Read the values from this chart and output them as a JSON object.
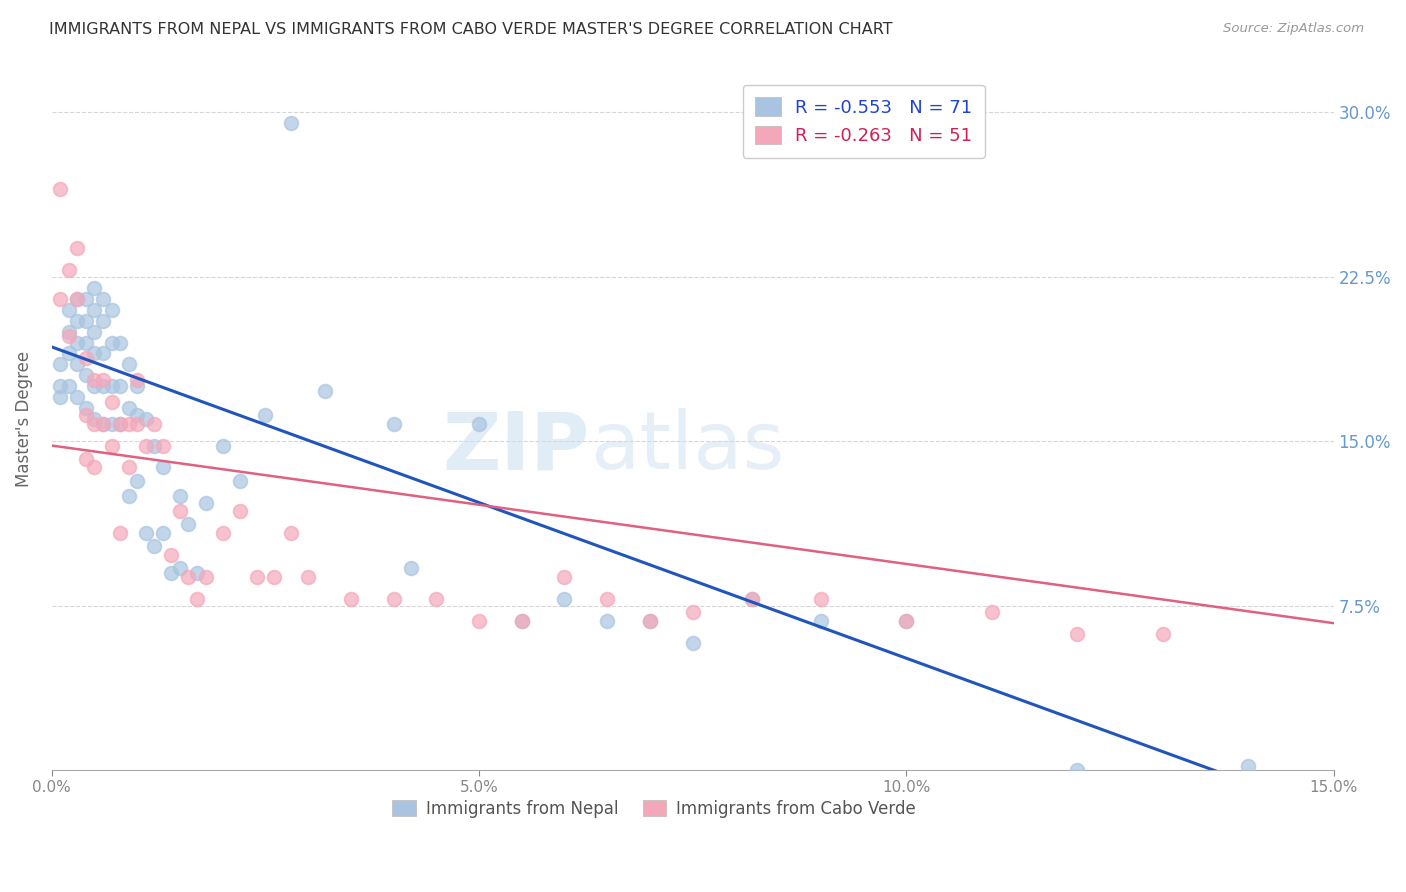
{
  "title": "IMMIGRANTS FROM NEPAL VS IMMIGRANTS FROM CABO VERDE MASTER'S DEGREE CORRELATION CHART",
  "source": "Source: ZipAtlas.com",
  "ylabel": "Master's Degree",
  "xlim": [
    0.0,
    0.15
  ],
  "ylim": [
    0.0,
    0.32
  ],
  "xticks": [
    0.0,
    0.05,
    0.1,
    0.15
  ],
  "xticklabels": [
    "0.0%",
    "5.0%",
    "10.0%",
    "15.0%"
  ],
  "yticks": [
    0.0,
    0.075,
    0.15,
    0.225,
    0.3
  ],
  "yticklabels": [
    "",
    "7.5%",
    "15.0%",
    "22.5%",
    "30.0%"
  ],
  "nepal_R": -0.553,
  "nepal_N": 71,
  "caboverde_R": -0.263,
  "caboverde_N": 51,
  "nepal_color": "#a8c4e0",
  "caboverde_color": "#f4a7b9",
  "nepal_line_color": "#2255bb",
  "caboverde_line_color": "#e06080",
  "background_color": "#ffffff",
  "grid_color": "#cccccc",
  "title_color": "#333333",
  "tick_color_right": "#6699cc",
  "legend_label_color_nepal": "#2244cc",
  "legend_label_color_caboverde": "#cc2255",
  "nepal_line_intercept": 0.193,
  "nepal_line_slope": -1.42,
  "caboverde_line_intercept": 0.148,
  "caboverde_line_slope": -0.54,
  "nepal_x": [
    0.001,
    0.001,
    0.001,
    0.002,
    0.002,
    0.002,
    0.002,
    0.003,
    0.003,
    0.003,
    0.003,
    0.003,
    0.004,
    0.004,
    0.004,
    0.004,
    0.004,
    0.005,
    0.005,
    0.005,
    0.005,
    0.005,
    0.005,
    0.006,
    0.006,
    0.006,
    0.006,
    0.006,
    0.007,
    0.007,
    0.007,
    0.007,
    0.008,
    0.008,
    0.008,
    0.009,
    0.009,
    0.009,
    0.01,
    0.01,
    0.01,
    0.011,
    0.011,
    0.012,
    0.012,
    0.013,
    0.013,
    0.014,
    0.015,
    0.015,
    0.016,
    0.017,
    0.018,
    0.02,
    0.022,
    0.025,
    0.028,
    0.032,
    0.04,
    0.042,
    0.05,
    0.055,
    0.06,
    0.065,
    0.07,
    0.075,
    0.082,
    0.09,
    0.1,
    0.12,
    0.14
  ],
  "nepal_y": [
    0.185,
    0.175,
    0.17,
    0.21,
    0.2,
    0.19,
    0.175,
    0.215,
    0.205,
    0.195,
    0.185,
    0.17,
    0.215,
    0.205,
    0.195,
    0.18,
    0.165,
    0.22,
    0.21,
    0.2,
    0.19,
    0.175,
    0.16,
    0.215,
    0.205,
    0.19,
    0.175,
    0.158,
    0.21,
    0.195,
    0.175,
    0.158,
    0.195,
    0.175,
    0.158,
    0.185,
    0.165,
    0.125,
    0.175,
    0.162,
    0.132,
    0.16,
    0.108,
    0.148,
    0.102,
    0.138,
    0.108,
    0.09,
    0.125,
    0.092,
    0.112,
    0.09,
    0.122,
    0.148,
    0.132,
    0.162,
    0.295,
    0.173,
    0.158,
    0.092,
    0.158,
    0.068,
    0.078,
    0.068,
    0.068,
    0.058,
    0.078,
    0.068,
    0.068,
    0.0,
    0.002
  ],
  "caboverde_x": [
    0.001,
    0.001,
    0.002,
    0.002,
    0.003,
    0.003,
    0.004,
    0.004,
    0.004,
    0.005,
    0.005,
    0.005,
    0.006,
    0.006,
    0.007,
    0.007,
    0.008,
    0.008,
    0.009,
    0.009,
    0.01,
    0.01,
    0.011,
    0.012,
    0.013,
    0.014,
    0.015,
    0.016,
    0.017,
    0.018,
    0.02,
    0.022,
    0.024,
    0.026,
    0.028,
    0.03,
    0.035,
    0.04,
    0.045,
    0.05,
    0.055,
    0.06,
    0.065,
    0.07,
    0.075,
    0.082,
    0.09,
    0.1,
    0.11,
    0.12,
    0.13
  ],
  "caboverde_y": [
    0.265,
    0.215,
    0.228,
    0.198,
    0.238,
    0.215,
    0.188,
    0.162,
    0.142,
    0.178,
    0.158,
    0.138,
    0.178,
    0.158,
    0.168,
    0.148,
    0.158,
    0.108,
    0.158,
    0.138,
    0.158,
    0.178,
    0.148,
    0.158,
    0.148,
    0.098,
    0.118,
    0.088,
    0.078,
    0.088,
    0.108,
    0.118,
    0.088,
    0.088,
    0.108,
    0.088,
    0.078,
    0.078,
    0.078,
    0.068,
    0.068,
    0.088,
    0.078,
    0.068,
    0.072,
    0.078,
    0.078,
    0.068,
    0.072,
    0.062,
    0.062
  ],
  "watermark_zip": "ZIP",
  "watermark_atlas": "atlas",
  "marker_size": 100
}
